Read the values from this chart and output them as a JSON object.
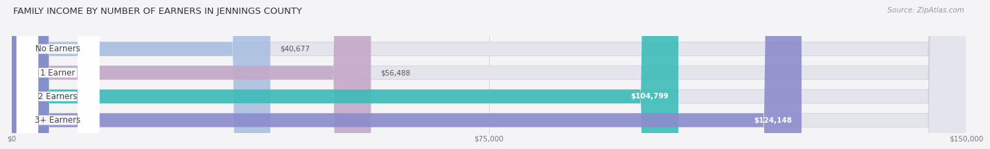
{
  "title": "FAMILY INCOME BY NUMBER OF EARNERS IN JENNINGS COUNTY",
  "source": "Source: ZipAtlas.com",
  "categories": [
    "No Earners",
    "1 Earner",
    "2 Earners",
    "3+ Earners"
  ],
  "values": [
    40677,
    56488,
    104799,
    124148
  ],
  "bar_colors": [
    "#aabfe0",
    "#c4a8c8",
    "#3dbcb8",
    "#8c8ccc"
  ],
  "bar_labels": [
    "$40,677",
    "$56,488",
    "$104,799",
    "$124,148"
  ],
  "x_ticks": [
    0,
    75000,
    150000
  ],
  "x_tick_labels": [
    "$0",
    "$75,000",
    "$150,000"
  ],
  "xlim": [
    0,
    150000
  ],
  "background_color": "#f4f4f6",
  "bar_bg_color": "#e4e4ec",
  "bar_row_bg": "#ebebf0",
  "title_fontsize": 9.5,
  "source_fontsize": 7.5,
  "label_fontsize": 7.5,
  "category_fontsize": 8.5
}
